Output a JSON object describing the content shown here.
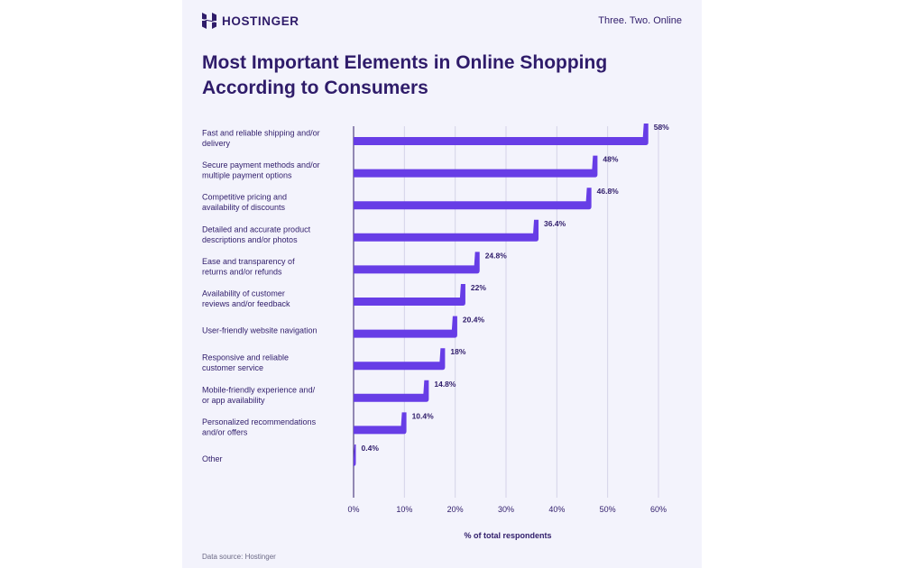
{
  "header": {
    "brand": "HOSTINGER",
    "tagline": "Three. Two. Online",
    "logo_icon": "hostinger-logo-icon"
  },
  "footer": {
    "source": "Data source: Hostinger"
  },
  "colors": {
    "bar": "#673de6",
    "text": "#2f1c6a",
    "grid": "#d4d2e8",
    "card": "#f3f3fc"
  },
  "chart_data": {
    "type": "bar",
    "orientation": "horizontal",
    "title": "Most Important Elements in Online Shopping According to Consumers",
    "xlabel": "% of total respondents",
    "ylabel": "",
    "xlim": [
      0,
      60
    ],
    "xticks": [
      "0%",
      "10%",
      "20%",
      "30%",
      "40%",
      "50%",
      "60%"
    ],
    "grid": true,
    "categories": [
      [
        "Fast and reliable shipping and/or",
        "delivery"
      ],
      [
        "Secure payment methods and/or",
        "multiple payment options"
      ],
      [
        "Competitive pricing and",
        "availability of discounts"
      ],
      [
        "Detailed and accurate product",
        "descriptions and/or photos"
      ],
      [
        "Ease and transparency of",
        "returns and/or refunds"
      ],
      [
        "Availability of customer",
        "reviews and/or feedback"
      ],
      [
        "User-friendly website navigation"
      ],
      [
        "Responsive and reliable",
        "customer service"
      ],
      [
        "Mobile-friendly experience and/",
        "or app availability"
      ],
      [
        "Personalized recommendations",
        "and/or offers"
      ],
      [
        "Other"
      ]
    ],
    "values": [
      58,
      48,
      46.8,
      36.4,
      24.8,
      22,
      20.4,
      18,
      14.8,
      10.4,
      0.4
    ],
    "value_labels": [
      "58%",
      "48%",
      "46.8%",
      "36.4%",
      "24.8%",
      "22%",
      "20.4%",
      "18%",
      "14.8%",
      "10.4%",
      "0.4%"
    ]
  }
}
